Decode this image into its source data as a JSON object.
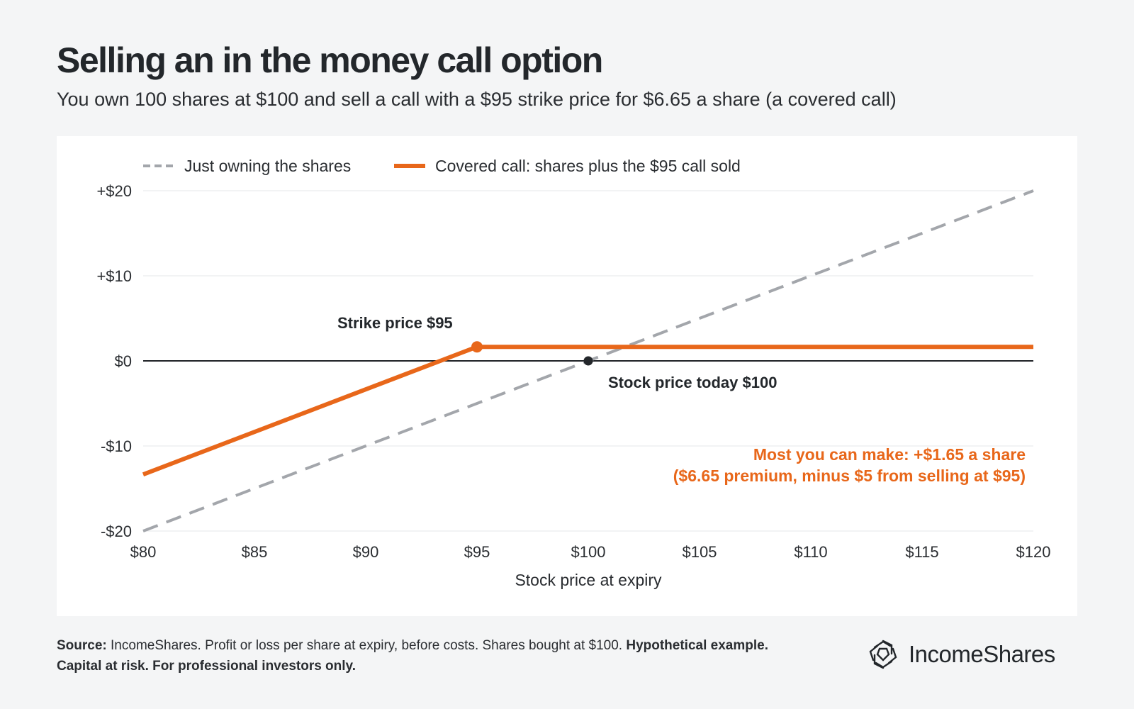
{
  "header": {
    "title": "Selling an in the money call option",
    "subtitle": "You own 100 shares at $100 and sell a call with a $95 strike price for $6.65 a share (a covered call)"
  },
  "chart_data": {
    "type": "line",
    "title": "Selling an in the money call option",
    "subtitle": "You own 100 shares at $100 and sell a call with a $95 strike price for $6.65 a share (a covered call)",
    "xlabel": "Stock price at expiry",
    "ylabel": "",
    "xlim": [
      80,
      120
    ],
    "ylim": [
      -20,
      20
    ],
    "x_ticks": [
      80,
      85,
      90,
      95,
      100,
      105,
      110,
      115,
      120
    ],
    "x_tick_labels": [
      "$80",
      "$85",
      "$90",
      "$95",
      "$100",
      "$105",
      "$110",
      "$115",
      "$120"
    ],
    "y_ticks": [
      20,
      10,
      0,
      -10,
      -20
    ],
    "y_tick_labels": [
      "+$20",
      "+$10",
      "$0",
      "-$10",
      "-$20"
    ],
    "grid": "horizontal",
    "legend_position": "top-left",
    "series": [
      {
        "name": "Just owning the shares",
        "style": "dashed",
        "color": "#a3a6ab",
        "points": [
          [
            80,
            -20
          ],
          [
            120,
            20
          ]
        ]
      },
      {
        "name": "Covered call: shares plus the $95 call sold",
        "style": "solid",
        "color": "#e8671a",
        "points": [
          [
            80,
            -13.35
          ],
          [
            95,
            1.65
          ],
          [
            120,
            1.65
          ]
        ]
      }
    ],
    "markers": [
      {
        "x": 95,
        "y": 1.65,
        "color": "#e8671a"
      },
      {
        "x": 100,
        "y": 0,
        "color": "#23272b"
      }
    ],
    "annotations": {
      "strike": "Strike price $95",
      "today": "Stock price today $100",
      "max_line1": "Most you can make: +$1.65 a share",
      "max_line2": "($6.65 premium, minus $5 from selling at $95)"
    }
  },
  "footer": {
    "source_label": "Source:",
    "source_text": " IncomeShares. Profit or loss per share at expiry, before costs. Shares bought at $100. ",
    "disclaimer": "Hypothetical example. Capital at risk. For professional investors only."
  },
  "brand": {
    "name": "IncomeShares",
    "logo_icon": "incomeshares-logo-icon"
  }
}
